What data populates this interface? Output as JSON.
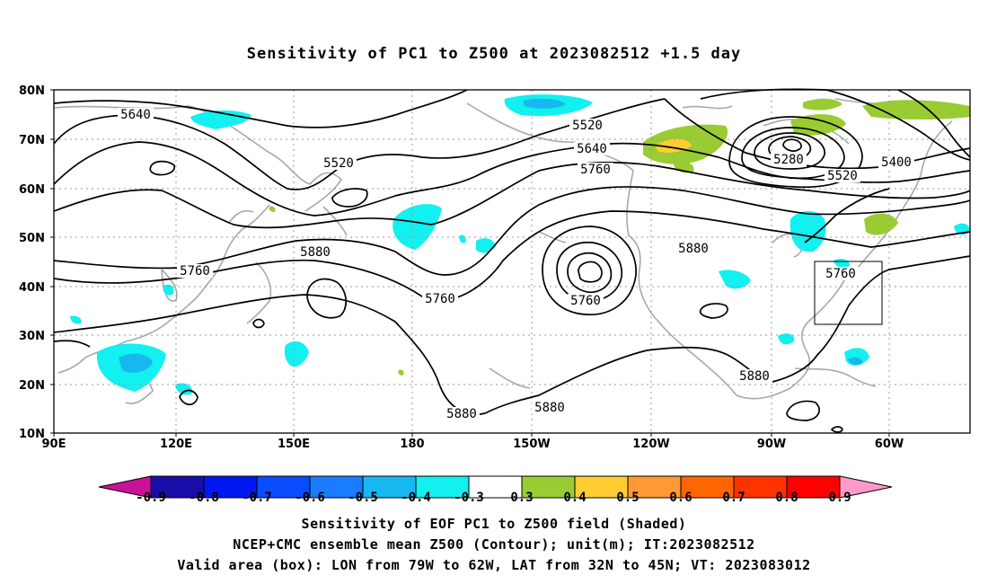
{
  "title": "Sensitivity of PC1 to Z500 at 2023082512 +1.5 day",
  "map": {
    "lat_labels": [
      "80N",
      "70N",
      "60N",
      "50N",
      "40N",
      "30N",
      "20N",
      "10N"
    ],
    "lon_labels": [
      "90E",
      "120E",
      "150E",
      "180",
      "150W",
      "120W",
      "90W",
      "60W"
    ],
    "contour_labels": [
      {
        "id": "c5640w",
        "text": "5640"
      },
      {
        "id": "c5520a",
        "text": "5520"
      },
      {
        "id": "c5520b",
        "text": "5520"
      },
      {
        "id": "c5640b",
        "text": "5640"
      },
      {
        "id": "c5760b",
        "text": "5760"
      },
      {
        "id": "c5280",
        "text": "5280"
      },
      {
        "id": "c5400",
        "text": "5400"
      },
      {
        "id": "c5520c",
        "text": "5520"
      },
      {
        "id": "c5760w",
        "text": "5760"
      },
      {
        "id": "c5880w",
        "text": "5880"
      },
      {
        "id": "c5760m",
        "text": "5760"
      },
      {
        "id": "c5760low",
        "text": "5760"
      },
      {
        "id": "c5880e",
        "text": "5880"
      },
      {
        "id": "c5760e",
        "text": "5760"
      },
      {
        "id": "c5880s1",
        "text": "5880"
      },
      {
        "id": "c5880s2",
        "text": "5880"
      },
      {
        "id": "c5880s3",
        "text": "5880"
      }
    ],
    "valid_box": {
      "lon_min": -79,
      "lon_max": -62,
      "lat_min": 32,
      "lat_max": 45
    }
  },
  "colorbar": {
    "labels": [
      "-0.9",
      "-0.8",
      "-0.7",
      "-0.6",
      "-0.5",
      "-0.4",
      "-0.3",
      "0.3",
      "0.4",
      "0.5",
      "0.6",
      "0.7",
      "0.8",
      "0.9"
    ],
    "colors": [
      "#1a0ca8",
      "#0018f0",
      "#0a4cff",
      "#1a7cff",
      "#16b8f0",
      "#12f0f0",
      "#ffffff",
      "#99cc33",
      "#ffcc33",
      "#ff9933",
      "#ff6600",
      "#ff3300",
      "#ff0000"
    ],
    "min_arrow_color": "#cc1199",
    "max_arrow_color": "#ff99cc"
  },
  "captions": {
    "line1": "Sensitivity of EOF PC1 to Z500 field (Shaded)",
    "line2": "NCEP+CMC ensemble mean Z500 (Contour); unit(m); IT:2023082512",
    "line3": "Valid area (box): LON from 79W to 62W, LAT from 32N to 45N; VT: 2023083012"
  }
}
